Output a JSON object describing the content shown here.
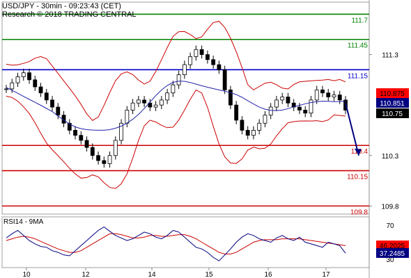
{
  "header": {
    "line1": "USD/JPY - 30min - 09:23:43 (CET)",
    "line2": "Research © 2018 TRADING CENTRAL"
  },
  "chart_data": {
    "type": "candlestick",
    "price_axis": {
      "ticks": [
        "111.3",
        "110.3",
        "109.8"
      ],
      "ylim": [
        109.72,
        111.82
      ]
    },
    "x_ticks": [
      "10",
      "12",
      "14",
      "15",
      "16",
      "17"
    ],
    "levels": [
      {
        "label": "111.7",
        "value": 111.7,
        "color": "#008000"
      },
      {
        "label": "111.45",
        "value": 111.45,
        "color": "#008000"
      },
      {
        "label": "111.15",
        "value": 111.15,
        "color": "#0000cc"
      },
      {
        "label": "110.4",
        "value": 110.4,
        "color": "#cc0000"
      },
      {
        "label": "110.15",
        "value": 110.15,
        "color": "#cc0000"
      },
      {
        "label": "109.8",
        "value": 109.8,
        "color": "#cc0000"
      }
    ],
    "price_markers": [
      {
        "label": "110.875",
        "value": 110.875,
        "bg": "#ff0000",
        "fg": "#000000"
      },
      {
        "label": "110.851",
        "value": 110.851,
        "bg": "#000080",
        "fg": "#ffffff"
      },
      {
        "label": "110.75",
        "value": 110.75,
        "bg": "#000000",
        "fg": "#ffffff"
      }
    ],
    "price_close": [
      110.96,
      111.02,
      111.08,
      111.12,
      111.05,
      110.98,
      110.92,
      110.85,
      110.78,
      110.7,
      110.62,
      110.55,
      110.5,
      110.45,
      110.38,
      110.3,
      110.25,
      110.22,
      110.3,
      110.45,
      110.62,
      110.75,
      110.82,
      110.85,
      110.82,
      110.78,
      110.8,
      110.85,
      110.92,
      111.0,
      111.1,
      111.2,
      111.28,
      111.35,
      111.3,
      111.25,
      111.2,
      111.15,
      110.95,
      110.8,
      110.65,
      110.55,
      110.5,
      110.55,
      110.62,
      110.7,
      110.78,
      110.85,
      110.88,
      110.82,
      110.78,
      110.75,
      110.72,
      110.85,
      110.95,
      110.92,
      110.88,
      110.9,
      110.85,
      110.75
    ],
    "forecast": {
      "from_value": 110.82,
      "to_value": 110.3
    },
    "rsi": {
      "title": "RSI14 - 9MA",
      "ticks": [
        "70",
        "30"
      ],
      "ylim": [
        20,
        80
      ],
      "rsi_values": [
        55,
        60,
        64,
        58,
        52,
        48,
        45,
        44,
        40,
        38,
        35,
        34,
        40,
        46,
        52,
        58,
        64,
        68,
        63,
        58,
        55,
        52,
        54,
        58,
        62,
        60,
        56,
        54,
        58,
        64,
        62,
        56,
        50,
        44,
        42,
        38,
        32,
        28,
        35,
        42,
        50,
        56,
        60,
        58,
        54,
        52,
        50,
        55,
        58,
        54,
        52,
        56,
        50,
        48,
        46,
        44,
        50,
        48,
        46,
        37
      ],
      "ma_values": [
        52,
        54,
        56,
        57,
        56,
        54,
        51,
        48,
        45,
        42,
        40,
        38,
        38,
        40,
        44,
        48,
        52,
        56,
        60,
        60,
        59,
        57,
        55,
        55,
        56,
        58,
        58,
        57,
        57,
        58,
        59,
        59,
        57,
        54,
        50,
        46,
        42,
        38,
        36,
        36,
        38,
        42,
        46,
        50,
        52,
        53,
        53,
        53,
        54,
        54,
        54,
        54,
        53,
        52,
        51,
        50,
        49,
        48,
        47,
        46
      ],
      "markers": [
        {
          "label": "46.2025",
          "value": 46.2025,
          "bg": "#ff0000",
          "fg": "#000000"
        },
        {
          "label": "37.2485",
          "value": 37.2485,
          "bg": "#000080",
          "fg": "#ffffff"
        }
      ]
    }
  }
}
